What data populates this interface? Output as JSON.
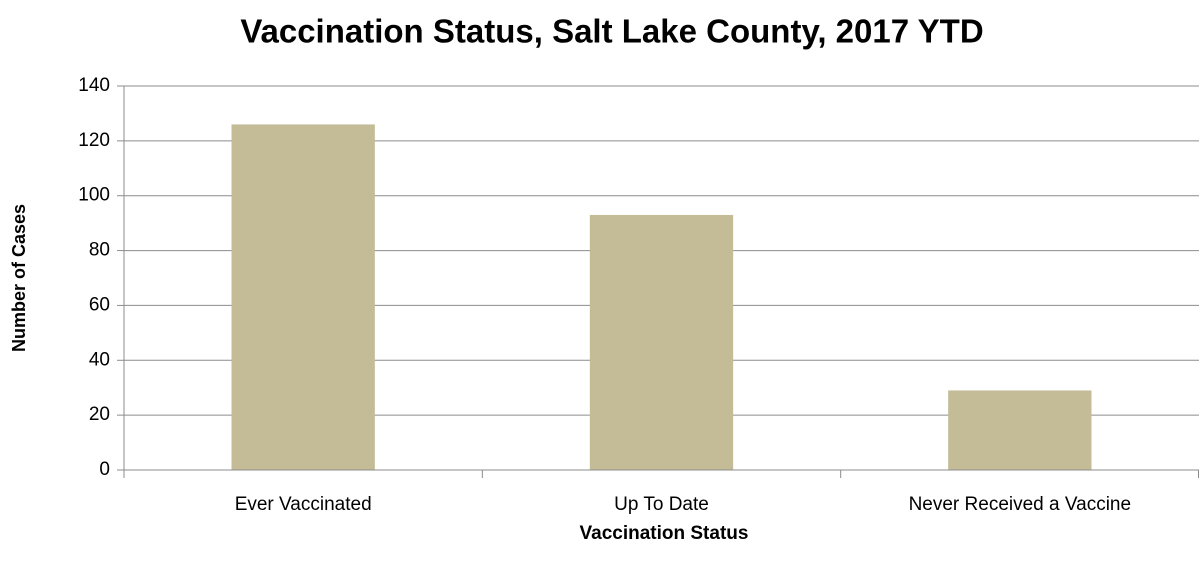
{
  "chart_data": {
    "type": "bar",
    "title": "Vaccination Status, Salt Lake County, 2017 YTD",
    "x_label": "Vaccination Status",
    "y_label": "Number of Cases",
    "categories": [
      "Ever Vaccinated",
      "Up To Date",
      "Never Received a Vaccine"
    ],
    "values": [
      126,
      93,
      29
    ],
    "color": "#c4bc96",
    "ylim": [
      0,
      140
    ],
    "yticks": [
      0,
      20,
      40,
      60,
      80,
      100,
      120,
      140
    ],
    "grid": true
  }
}
